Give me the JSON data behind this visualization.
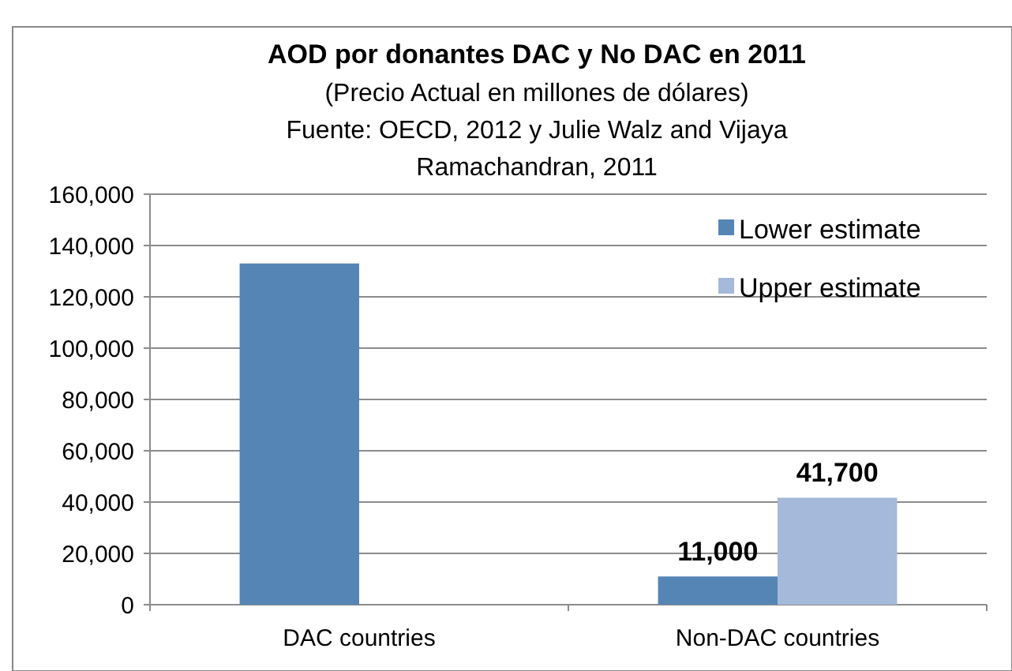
{
  "chart_data": {
    "type": "bar",
    "title": "AOD por donantes DAC y No DAC en 2011",
    "subtitle": "(Precio Actual en millones de dólares)",
    "annotations": [
      "Fuente: OECD, 2012 y Julie Walz and Vijaya Ramachandran, 2011"
    ],
    "categories": [
      "DAC countries",
      "Non-DAC countries"
    ],
    "series": [
      {
        "name": "Lower estimate",
        "color": "#5585b5",
        "values": [
          133000,
          11000
        ],
        "value_labels": [
          null,
          "11,000"
        ]
      },
      {
        "name": "Upper estimate",
        "color": "#a5b9da",
        "values": [
          null,
          41700
        ],
        "value_labels": [
          null,
          "41,700"
        ]
      }
    ],
    "ylim": [
      0,
      160000
    ],
    "yticks": [
      {
        "value": 0,
        "label": "0"
      },
      {
        "value": 20000,
        "label": "20,000"
      },
      {
        "value": 40000,
        "label": "40,000"
      },
      {
        "value": 60000,
        "label": "60,000"
      },
      {
        "value": 80000,
        "label": "80,000"
      },
      {
        "value": 100000,
        "label": "100,000"
      },
      {
        "value": 120000,
        "label": "120,000"
      },
      {
        "value": 140000,
        "label": "140,000"
      },
      {
        "value": 160000,
        "label": "160,000"
      }
    ],
    "grid": "y",
    "legend": "top right"
  }
}
